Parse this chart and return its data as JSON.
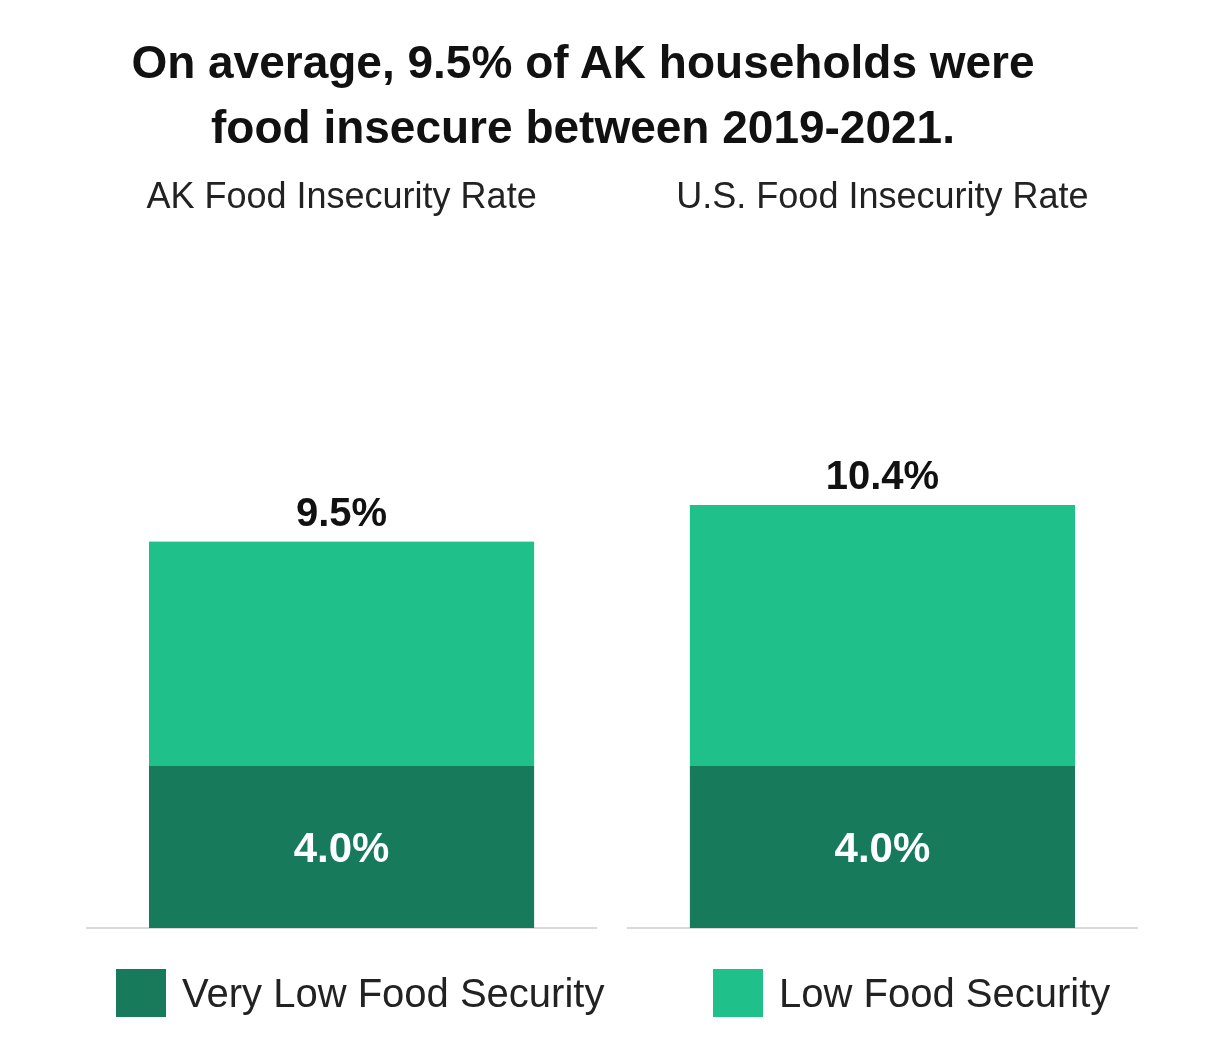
{
  "chart_data": {
    "type": "bar",
    "title": "On average, 9.5% of AK households were food insecure between 2019-2021.",
    "categories": [
      "AK Food Insecurity Rate",
      "U.S. Food Insecurity Rate"
    ],
    "stacked": true,
    "series": [
      {
        "name": "Very Low Food Security",
        "color": "#177a5a",
        "values": [
          4.0,
          4.0
        ],
        "value_labels": [
          "4.0%",
          "4.0%"
        ]
      },
      {
        "name": "Low Food Security",
        "color": "#20c08b",
        "values": [
          5.5,
          6.4
        ]
      }
    ],
    "totals": [
      "9.5%",
      "10.4%"
    ],
    "legend": "bottom"
  }
}
